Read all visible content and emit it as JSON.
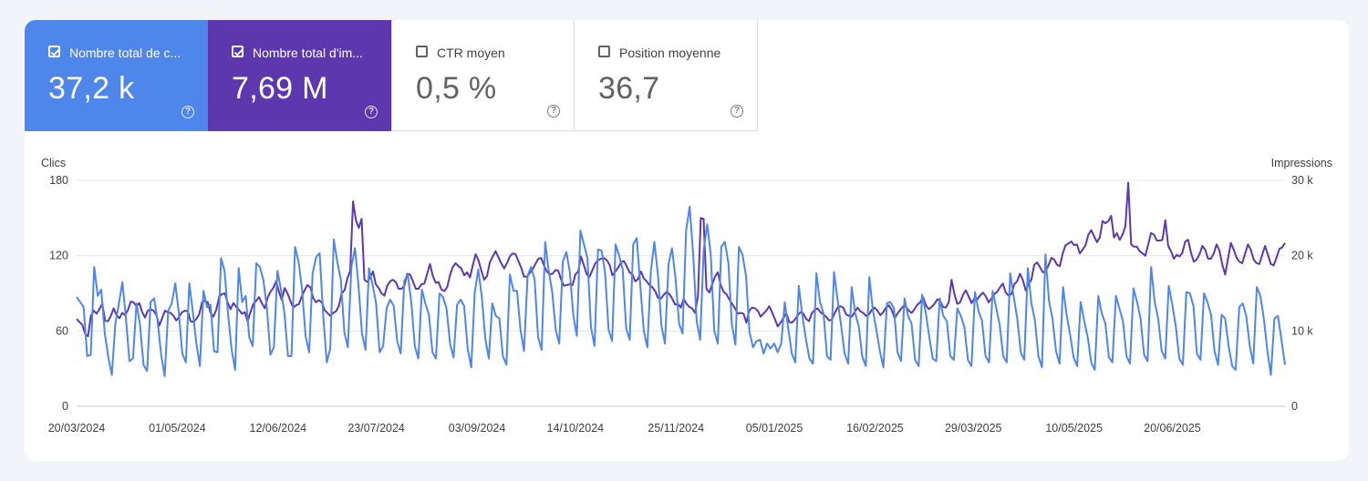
{
  "metrics": [
    {
      "label": "Nombre total de c...",
      "value": "37,2 k",
      "checked": true,
      "help": "?"
    },
    {
      "label": "Nombre total d'im...",
      "value": "7,69 M",
      "checked": true,
      "help": "?"
    },
    {
      "label": "CTR moyen",
      "value": "0,5 %",
      "checked": false,
      "help": "?"
    },
    {
      "label": "Position moyenne",
      "value": "36,7",
      "checked": false,
      "help": "?"
    }
  ],
  "colors": {
    "clicks": "#4e86ea",
    "impressions": "#5d37ad",
    "grid": "#e3e6ea",
    "baseline": "#c4c7cc"
  },
  "chart_data": {
    "type": "line",
    "ylabel_left": "Clics",
    "ylabel_right": "Impressions",
    "ylim_left": [
      0,
      180
    ],
    "ylim_right": [
      0,
      30000
    ],
    "yticks_left": [
      "0",
      "60",
      "120",
      "180"
    ],
    "yticks_right": [
      "0",
      "10 k",
      "20 k",
      "30 k"
    ],
    "x_start": "20/03/2024",
    "x_end": "06/08/2025",
    "xticks": [
      "20/03/2024",
      "01/05/2024",
      "12/06/2024",
      "23/07/2024",
      "03/09/2024",
      "14/10/2024",
      "25/11/2024",
      "05/01/2025",
      "16/02/2025",
      "29/03/2025",
      "10/05/2025",
      "20/06/2025"
    ],
    "grid": true,
    "series": [
      {
        "name": "Clics",
        "axis": "left",
        "values": [
          87,
          83,
          79,
          40,
          41,
          111,
          88,
          93,
          58,
          39,
          25,
          66,
          82,
          99,
          70,
          36,
          38,
          82,
          65,
          33,
          28,
          83,
          86,
          68,
          41,
          24,
          76,
          82,
          98,
          75,
          42,
          35,
          98,
          75,
          50,
          32,
          92,
          79,
          81,
          44,
          43,
          118,
          108,
          73,
          45,
          29,
          110,
          83,
          88,
          55,
          48,
          114,
          111,
          101,
          79,
          41,
          47,
          108,
          93,
          74,
          40,
          40,
          127,
          115,
          93,
          56,
          43,
          106,
          119,
          122,
          72,
          35,
          46,
          133,
          115,
          101,
          59,
          47,
          111,
          126,
          97,
          58,
          45,
          110,
          97,
          82,
          43,
          48,
          78,
          85,
          80,
          52,
          42,
          100,
          105,
          83,
          48,
          38,
          93,
          82,
          73,
          43,
          38,
          90,
          87,
          78,
          50,
          39,
          81,
          85,
          80,
          46,
          31,
          90,
          109,
          88,
          54,
          38,
          82,
          72,
          70,
          40,
          33,
          105,
          92,
          92,
          61,
          44,
          104,
          111,
          101,
          55,
          45,
          131,
          108,
          91,
          61,
          50,
          115,
          123,
          107,
          72,
          56,
          140,
          129,
          118,
          63,
          48,
          125,
          124,
          107,
          61,
          52,
          129,
          120,
          109,
          62,
          53,
          129,
          134,
          96,
          60,
          47,
          108,
          131,
          105,
          64,
          50,
          113,
          126,
          102,
          66,
          58,
          140,
          159,
          122,
          68,
          53,
          125,
          145,
          121,
          60,
          50,
          127,
          131,
          114,
          65,
          49,
          127,
          121,
          104,
          59,
          47,
          52,
          53,
          42,
          50,
          46,
          50,
          43,
          50,
          83,
          62,
          42,
          35,
          96,
          72,
          54,
          38,
          34,
          106,
          83,
          74,
          40,
          37,
          107,
          85,
          64,
          42,
          34,
          95,
          74,
          64,
          40,
          32,
          103,
          77,
          61,
          44,
          31,
          82,
          83,
          78,
          43,
          36,
          86,
          72,
          66,
          37,
          32,
          89,
          75,
          56,
          38,
          36,
          86,
          72,
          68,
          40,
          37,
          78,
          72,
          63,
          37,
          32,
          91,
          76,
          68,
          40,
          35,
          92,
          79,
          65,
          40,
          35,
          106,
          87,
          70,
          43,
          37,
          110,
          82,
          69,
          40,
          31,
          121,
          84,
          70,
          44,
          34,
          95,
          73,
          57,
          39,
          32,
          83,
          68,
          55,
          35,
          29,
          88,
          74,
          66,
          39,
          35,
          88,
          78,
          68,
          40,
          34,
          94,
          83,
          70,
          41,
          36,
          111,
          83,
          70,
          44,
          38,
          96,
          81,
          64,
          38,
          33,
          91,
          90,
          80,
          42,
          37,
          90,
          83,
          73,
          44,
          33,
          73,
          70,
          48,
          32,
          29,
          79,
          82,
          72,
          48,
          34,
          95,
          88,
          70,
          44,
          25,
          70,
          72,
          53,
          33
        ]
      },
      {
        "name": "Impressions",
        "axis": "right",
        "values": [
          11600,
          11200,
          10800,
          9600,
          9300,
          12000,
          12700,
          12300,
          12900,
          13600,
          11400,
          11300,
          12000,
          13000,
          12100,
          11700,
          12400,
          12100,
          12800,
          13900,
          13800,
          13300,
          13700,
          12500,
          11800,
          12700,
          12900,
          12700,
          12100,
          10700,
          11700,
          12700,
          12500,
          12400,
          12000,
          11400,
          11900,
          12500,
          12700,
          12600,
          11300,
          11200,
          11600,
          12200,
          13800,
          14000,
          13800,
          12400,
          11900,
          12800,
          14500,
          14900,
          15000,
          13800,
          12900,
          13700,
          13200,
          12800,
          12300,
          12500,
          11300,
          12500,
          13600,
          14000,
          14500,
          13700,
          13000,
          14400,
          15200,
          15700,
          16600,
          15200,
          14100,
          15700,
          15000,
          14000,
          13100,
          13400,
          13600,
          14600,
          15400,
          16100,
          15800,
          14400,
          13800,
          14100,
          13800,
          12800,
          12400,
          12000,
          12400,
          12600,
          13300,
          15000,
          15400,
          17000,
          18000,
          27200,
          24700,
          23700,
          24900,
          16800,
          16500,
          17100,
          17900,
          16200,
          15700,
          15000,
          14700,
          16000,
          16600,
          16800,
          16500,
          15600,
          15600,
          16000,
          17600,
          17500,
          16600,
          15600,
          15600,
          16200,
          16300,
          17600,
          18900,
          17300,
          16400,
          16500,
          15500,
          15300,
          15800,
          17400,
          18500,
          19000,
          18600,
          18300,
          17400,
          17800,
          17100,
          18700,
          20200,
          19400,
          18000,
          16800,
          17300,
          19100,
          19900,
          20600,
          19800,
          19000,
          18300,
          19000,
          19900,
          20300,
          20200,
          19300,
          18400,
          17200,
          17200,
          17700,
          18200,
          18900,
          19600,
          19700,
          18700,
          17900,
          17500,
          17600,
          18100,
          18000,
          16800,
          16000,
          16100,
          16200,
          16100,
          17500,
          17900,
          19900,
          18700,
          17500,
          17200,
          18100,
          19000,
          19400,
          19600,
          19700,
          19400,
          18800,
          17400,
          17900,
          18400,
          19100,
          19300,
          18600,
          17800,
          17500,
          16600,
          16900,
          17900,
          17000,
          16600,
          16100,
          15800,
          15300,
          14400,
          14300,
          14800,
          15200,
          14900,
          14300,
          13500,
          13600,
          13100,
          14300,
          13600,
          13200,
          13000,
          12400,
          14600,
          25000,
          24900,
          15600,
          15100,
          16200,
          17200,
          17800,
          16100,
          15200,
          14900,
          14200,
          13600,
          13000,
          12300,
          12400,
          12300,
          11100,
          12700,
          13100,
          13000,
          12700,
          11900,
          12300,
          12700,
          13300,
          12500,
          11600,
          10600,
          11100,
          11700,
          12400,
          11200,
          11100,
          11500,
          12100,
          12500,
          12300,
          11600,
          11300,
          12400,
          12800,
          13000,
          12500,
          12200,
          11900,
          11400,
          11500,
          12400,
          13100,
          13300,
          13100,
          12200,
          12000,
          11900,
          12500,
          13100,
          12600,
          12400,
          12000,
          12200,
          12800,
          13100,
          12700,
          12100,
          12500,
          13100,
          13400,
          12800,
          11700,
          12300,
          12800,
          13300,
          13200,
          12700,
          12400,
          12900,
          13500,
          13800,
          14500,
          13400,
          12900,
          13200,
          13600,
          14200,
          14000,
          13200,
          13100,
          13800,
          16800,
          14900,
          13600,
          13800,
          14800,
          15400,
          14600,
          13700,
          14300,
          14200,
          14700,
          15100,
          14600,
          13800,
          14300,
          14900,
          15200,
          15800,
          16300,
          15100,
          14700,
          14900,
          16200,
          16600,
          17600,
          16800,
          15400,
          16200,
          16800,
          18800,
          19100,
          18500,
          17800,
          17900,
          18700,
          19700,
          19500,
          18800,
          18600,
          20300,
          21400,
          21600,
          21900,
          21400,
          21500,
          20300,
          20800,
          21400,
          22800,
          23400,
          22600,
          21800,
          22400,
          24600,
          24300,
          24600,
          25300,
          22400,
          23000,
          22100,
          22800,
          23900,
          29700,
          21500,
          21200,
          21200,
          20600,
          20300,
          20000,
          21500,
          23000,
          22800,
          22000,
          22000,
          22100,
          24700,
          21300,
          20600,
          19600,
          20100,
          19900,
          20400,
          21900,
          22100,
          20400,
          19200,
          19500,
          20200,
          21300,
          20800,
          19600,
          19600,
          20300,
          21500,
          20700,
          18800,
          17500,
          19600,
          21700,
          20800,
          19700,
          19200,
          19000,
          20300,
          21500,
          20800,
          19500,
          19000,
          18900,
          20100,
          21300,
          20100,
          18900,
          18700,
          19700,
          20900,
          21100,
          21700
        ]
      }
    ]
  }
}
